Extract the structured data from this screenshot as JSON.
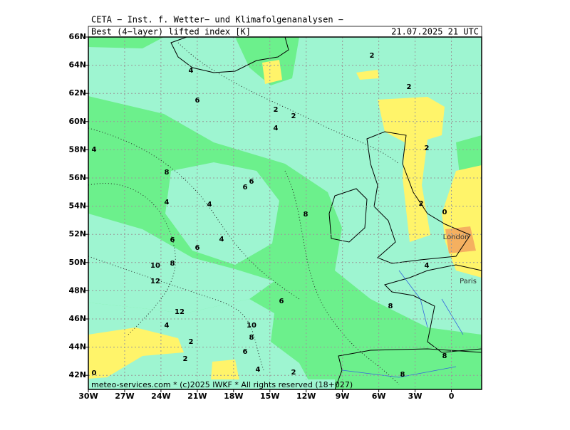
{
  "header": {
    "institute": "CETA − Inst. f. Wetter− und Klimafolgenanalysen −",
    "title": "Best (4−layer) lifted index [K]",
    "datetime": "21.07.2025 21 UTC"
  },
  "map": {
    "lonlim": [
      -30,
      2.5
    ],
    "latlim": [
      41,
      66
    ],
    "lat_ticks": [
      {
        "value": 42,
        "label": "42N"
      },
      {
        "value": 44,
        "label": "44N"
      },
      {
        "value": 46,
        "label": "46N"
      },
      {
        "value": 48,
        "label": "48N"
      },
      {
        "value": 50,
        "label": "50N"
      },
      {
        "value": 52,
        "label": "52N"
      },
      {
        "value": 54,
        "label": "54N"
      },
      {
        "value": 56,
        "label": "56N"
      },
      {
        "value": 58,
        "label": "58N"
      },
      {
        "value": 60,
        "label": "60N"
      },
      {
        "value": 62,
        "label": "62N"
      },
      {
        "value": 64,
        "label": "64N"
      },
      {
        "value": 66,
        "label": "66N"
      }
    ],
    "lon_ticks": [
      {
        "value": -30,
        "label": "30W"
      },
      {
        "value": -27,
        "label": "27W"
      },
      {
        "value": -24,
        "label": "24W"
      },
      {
        "value": -21,
        "label": "21W"
      },
      {
        "value": -18,
        "label": "18W"
      },
      {
        "value": -15,
        "label": "15W"
      },
      {
        "value": -12,
        "label": "12W"
      },
      {
        "value": -9,
        "label": "9W"
      },
      {
        "value": -6,
        "label": "6W"
      },
      {
        "value": -3,
        "label": "3W"
      },
      {
        "value": 0,
        "label": "0"
      }
    ],
    "contour_labels": [
      4,
      2,
      2,
      6,
      2,
      2,
      4,
      4,
      2,
      8,
      6,
      6,
      4,
      4,
      2,
      0,
      8,
      4,
      6,
      6,
      10,
      8,
      4,
      12,
      6,
      8,
      12,
      4,
      10,
      8,
      2,
      6,
      2,
      8,
      4,
      2,
      8,
      0
    ],
    "cities": [
      "London",
      "Paris"
    ]
  },
  "footer": "meteo-services.com * (c)2025 IWKF * All rights reserved (18+027)"
}
